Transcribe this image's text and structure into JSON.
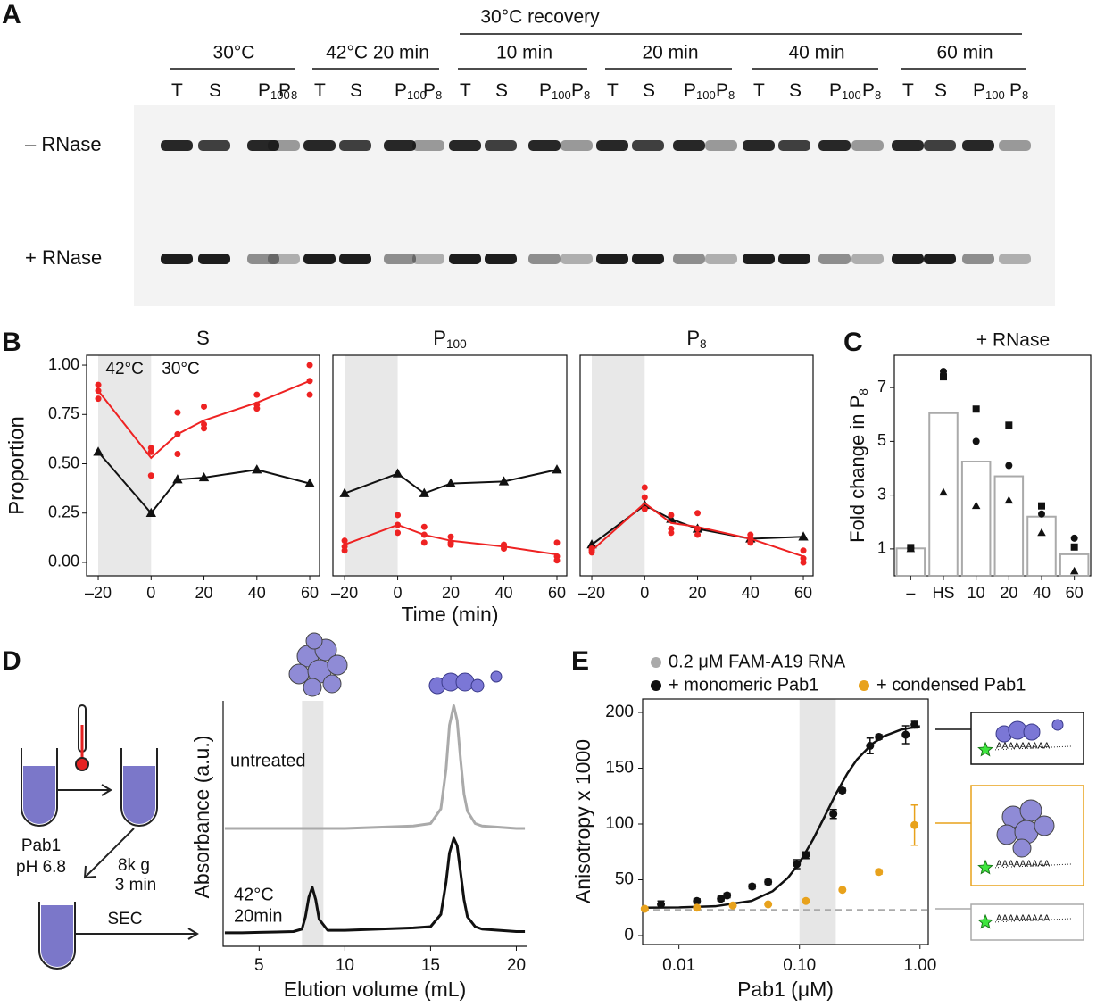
{
  "panel_labels": [
    "A",
    "B",
    "C",
    "D",
    "E"
  ],
  "gel": {
    "header": "30°C recovery",
    "groups": [
      "30°C",
      "42°C 20 min",
      "10 min",
      "20 min",
      "40 min",
      "60 min"
    ],
    "lanes": [
      {
        "text": "T"
      },
      {
        "text": "S"
      },
      {
        "text": "P",
        "sub": "100"
      },
      {
        "text": "P",
        "sub": "8"
      }
    ],
    "rows": [
      "– RNase",
      "+ RNase"
    ],
    "row_colors": [
      "#111111",
      "#ee2222"
    ]
  },
  "sec_scheme": {
    "sample": "Pab1",
    "ph": "pH 6.8",
    "spin": [
      "8k g",
      "3 min"
    ],
    "step": "SEC"
  },
  "e_insets": {
    "rna": "AAAAAAAAA"
  },
  "chart_data": [
    {
      "type": "line",
      "title": "S",
      "y_label": "Proportion",
      "x": [
        -20,
        0,
        10,
        20,
        40,
        60
      ],
      "xlim": [
        -24.4,
        63.7
      ],
      "ylim": [
        -0.068,
        1.05
      ],
      "xticks": [
        {
          "value": -20,
          "label": "–20"
        },
        0,
        20,
        40,
        60
      ],
      "yticks": [
        {
          "value": 0,
          "label": "0.00"
        },
        0.25,
        {
          "value": 0.5,
          "label": "0.50"
        },
        0.75,
        {
          "value": 1,
          "label": "1.00"
        }
      ],
      "shade": [
        -20,
        0
      ],
      "annotations": [
        "42°C",
        "30°C"
      ],
      "series": [
        {
          "color": "#111111",
          "marker": "triangle",
          "values": [
            0.56,
            0.25,
            0.42,
            0.43,
            0.47,
            0.4
          ]
        },
        {
          "color": "#ee2222",
          "marker": "none",
          "values": [
            0.87,
            0.53,
            0.65,
            0.72,
            0.81,
            0.92
          ]
        },
        {
          "color": "#ee2222",
          "marker": "dot",
          "line": false,
          "values": [
            [
              0.9,
              0.87,
              0.83
            ],
            [
              0.58,
              0.56,
              0.44
            ],
            [
              0.76,
              0.65,
              0.55
            ],
            [
              0.79,
              0.7,
              0.68
            ],
            [
              0.85,
              0.8,
              0.78
            ],
            [
              1.0,
              0.92,
              0.85
            ]
          ]
        }
      ]
    },
    {
      "type": "line",
      "title": {
        "text": "P",
        "sub": "100"
      },
      "x_label": "Time (min)",
      "x": [
        -20,
        0,
        10,
        20,
        40,
        60
      ],
      "xlim": [
        -24.4,
        63.7
      ],
      "ylim": [
        -0.068,
        1.05
      ],
      "xticks": [
        {
          "value": -20,
          "label": "–20"
        },
        0,
        20,
        40,
        60
      ],
      "shade": [
        -20,
        0
      ],
      "series": [
        {
          "color": "#111111",
          "marker": "triangle",
          "values": [
            0.35,
            0.45,
            0.35,
            0.4,
            0.41,
            0.47
          ]
        },
        {
          "color": "#ee2222",
          "marker": "none",
          "values": [
            0.09,
            0.19,
            0.14,
            0.11,
            0.08,
            0.04
          ]
        },
        {
          "color": "#ee2222",
          "marker": "dot",
          "line": false,
          "values": [
            [
              0.11,
              0.08,
              0.06
            ],
            [
              0.24,
              0.19,
              0.15
            ],
            [
              0.18,
              0.14,
              0.1
            ],
            [
              0.13,
              0.1,
              0.09
            ],
            [
              0.09,
              0.08,
              0.07
            ],
            [
              0.1,
              0.03,
              0.01
            ]
          ]
        }
      ]
    },
    {
      "type": "line",
      "title": {
        "text": "P",
        "sub": "8"
      },
      "x": [
        -20,
        0,
        10,
        20,
        40,
        60
      ],
      "xlim": [
        -24.4,
        63.7
      ],
      "ylim": [
        -0.068,
        1.05
      ],
      "xticks": [
        {
          "value": -20,
          "label": "–20"
        },
        0,
        20,
        40,
        60
      ],
      "shade": [
        -20,
        0
      ],
      "series": [
        {
          "color": "#111111",
          "marker": "triangle",
          "values": [
            0.09,
            0.29,
            0.22,
            0.17,
            0.12,
            0.13
          ]
        },
        {
          "color": "#ee2222",
          "marker": "none",
          "values": [
            0.06,
            0.3,
            0.2,
            0.18,
            0.12,
            0.03
          ]
        },
        {
          "color": "#ee2222",
          "marker": "dot",
          "line": false,
          "values": [
            [
              0.07,
              0.06,
              0.05
            ],
            [
              0.38,
              0.33,
              0.27
            ],
            [
              0.24,
              0.17,
              0.15
            ],
            [
              0.25,
              0.17,
              0.14
            ],
            [
              0.14,
              0.12,
              0.1
            ],
            [
              0.06,
              0.02,
              0.0
            ]
          ]
        }
      ]
    },
    {
      "type": "bar",
      "title": "+ RNase",
      "title_color": "#ee2222",
      "y_label": {
        "text": "Fold change in P",
        "sub": "8"
      },
      "categories": [
        "–",
        "HS",
        "10",
        "20",
        "40",
        "60"
      ],
      "values": [
        1.02,
        6.05,
        4.25,
        3.7,
        2.2,
        0.8
      ],
      "color": "#ffffff",
      "edge_color": "#aaaaaa",
      "ylim": [
        0,
        8.2
      ],
      "yticks": [
        1,
        3,
        5,
        7
      ],
      "series": [
        {
          "marker": "square",
          "color": "#111111",
          "values": [
            1.05,
            7.4,
            6.2,
            5.6,
            2.6,
            1.07
          ]
        },
        {
          "marker": "circle",
          "color": "#111111",
          "values": [
            1.03,
            7.6,
            5.0,
            4.1,
            2.3,
            1.4
          ]
        },
        {
          "marker": "triangle",
          "color": "#111111",
          "values": [
            1.0,
            3.1,
            2.6,
            2.8,
            1.6,
            0.17
          ]
        }
      ]
    },
    {
      "type": "line",
      "x_label": "Elution volume (mL)",
      "y_label": "Absorbance (a.u.)",
      "x": [
        3,
        4,
        5,
        6,
        7,
        7.5,
        7.7,
        7.9,
        8.1,
        8.3,
        8.5,
        9,
        10,
        12,
        14,
        15,
        15.6,
        15.9,
        16.1,
        16.35,
        16.55,
        16.75,
        16.95,
        17.15,
        17.6,
        18,
        19,
        20,
        20.5
      ],
      "xlim": [
        2.9,
        20.6
      ],
      "ylim": [
        0,
        1
      ],
      "xticks": [
        5,
        10,
        15,
        20
      ],
      "shade": [
        7.5,
        8.75
      ],
      "series": [
        {
          "labels": [
            "untreated"
          ],
          "color": "#aaaaaa",
          "values": [
            0.48,
            0.48,
            0.48,
            0.48,
            0.48,
            0.48,
            0.48,
            0.48,
            0.48,
            0.48,
            0.48,
            0.48,
            0.48,
            0.485,
            0.49,
            0.5,
            0.56,
            0.72,
            0.9,
            0.98,
            0.92,
            0.76,
            0.62,
            0.55,
            0.5,
            0.49,
            0.485,
            0.48,
            0.48
          ]
        },
        {
          "labels": [
            "42°C",
            "20min"
          ],
          "color": "#111111",
          "values": [
            0.055,
            0.055,
            0.057,
            0.058,
            0.06,
            0.07,
            0.12,
            0.2,
            0.24,
            0.19,
            0.11,
            0.065,
            0.065,
            0.07,
            0.075,
            0.08,
            0.13,
            0.26,
            0.38,
            0.44,
            0.41,
            0.3,
            0.19,
            0.12,
            0.08,
            0.07,
            0.065,
            0.06,
            0.06
          ]
        }
      ]
    },
    {
      "type": "scatter",
      "x_label": "Pab1 (μM)",
      "y_label": "Anisotropy x 1000",
      "log_x": true,
      "xlim": [
        0.005,
        1.17
      ],
      "ylim": [
        -8,
        212
      ],
      "xticks": [
        0.01,
        {
          "value": 0.1,
          "label": "0.10"
        },
        {
          "value": 1,
          "label": "1.00"
        }
      ],
      "yticks": [
        0,
        50,
        100,
        150,
        200
      ],
      "shade": [
        0.1,
        0.2
      ],
      "series": [
        {
          "name": "0.2 μM FAM-A19 RNA",
          "color": "#aaaaaa",
          "reference": 23
        },
        {
          "name": "+ monomeric Pab1",
          "color": "#111111",
          "x": [
            0.0071,
            0.0141,
            0.0223,
            0.0251,
            0.0405,
            0.055,
            0.095,
            0.113,
            0.191,
            0.227,
            0.385,
            0.456,
            0.76,
            0.9
          ],
          "values": [
            28,
            31,
            33,
            36,
            44,
            48,
            64,
            72,
            109,
            130,
            170,
            178,
            180,
            189
          ],
          "errors": [
            3,
            2,
            2,
            2,
            2,
            2,
            4,
            3,
            4,
            2,
            7,
            2,
            8,
            3
          ],
          "fit": {
            "x": [
              0.005,
              0.01,
              0.02,
              0.04,
              0.06,
              0.08,
              0.1,
              0.13,
              0.16,
              0.2,
              0.25,
              0.3,
              0.4,
              0.5,
              0.7,
              1.0
            ],
            "values": [
              25.05,
              25.25,
              26.26,
              31.1,
              39.8,
              51.6,
              65.2,
              86.4,
              105.7,
              126.7,
              145.4,
              157.8,
              171.7,
              178.6,
              184.6,
              187.6
            ]
          }
        },
        {
          "name": "+ condensed Pab1",
          "color": "#e8a21c",
          "x": [
            0.0052,
            0.0141,
            0.028,
            0.055,
            0.113,
            0.227,
            0.456,
            0.9
          ],
          "values": [
            24,
            25,
            27,
            28,
            31,
            41,
            57,
            99
          ],
          "errors": [
            1,
            1,
            1,
            1,
            1,
            1,
            2,
            18
          ]
        }
      ]
    }
  ]
}
